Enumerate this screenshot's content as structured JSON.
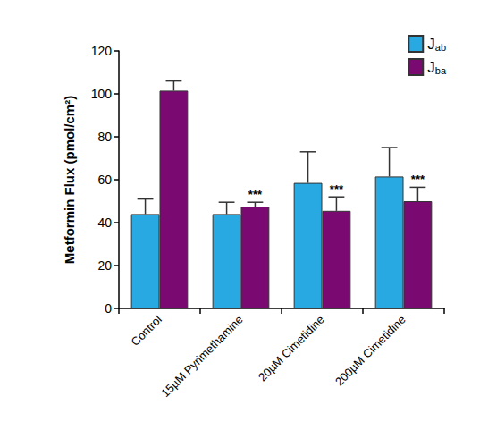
{
  "chart_data": {
    "type": "bar",
    "y_label": "Metformin Flux (pmol/cm²)",
    "categories": [
      "Control",
      "15µM Pyrimethamine",
      "20µM Cimetidine",
      "200µM Cimetidine"
    ],
    "series": [
      {
        "name": "Jab",
        "color": "#29a9e1",
        "values": [
          44,
          44,
          58.5,
          61.5
        ],
        "errors": [
          7,
          5.5,
          14.5,
          13.5
        ],
        "annotations": [
          null,
          null,
          null,
          null
        ]
      },
      {
        "name": "Jba",
        "color": "#7a0a72",
        "values": [
          101.5,
          47.5,
          45.5,
          50
        ],
        "errors": [
          4.5,
          2,
          6.5,
          6.5
        ],
        "annotations": [
          null,
          "***",
          "***",
          "***"
        ]
      }
    ],
    "ylim": [
      0,
      120
    ],
    "yticks": [
      0,
      20,
      40,
      60,
      80,
      100,
      120
    ],
    "grid": false,
    "legend": "upper right"
  }
}
